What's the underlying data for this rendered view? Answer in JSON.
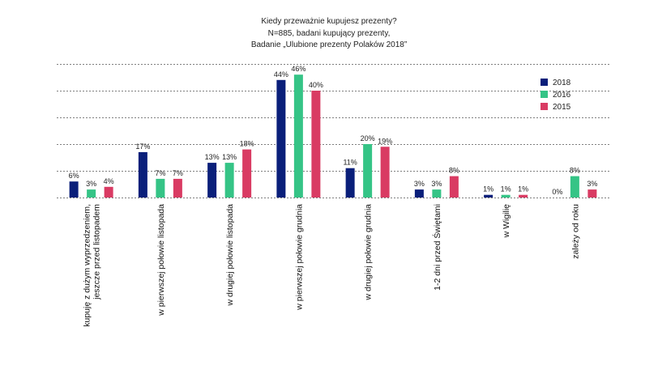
{
  "chart_data": {
    "type": "bar",
    "title_lines": [
      "Kiedy przeważnie kupujesz prezenty?",
      "N=885, badani kupujący prezenty,",
      "Badanie „Ulubione prezenty Polaków 2018”"
    ],
    "categories": [
      [
        "kupuję z dużym wyprzedzeniem,",
        "jeszcze przed listopadem"
      ],
      [
        "w pierwszej połowie listopada"
      ],
      [
        "w drugiej połowie listopada"
      ],
      [
        "w pierwszej połowie grudnia"
      ],
      [
        "w drugiej połowie grudnia"
      ],
      [
        "1-2 dni przed Świętami"
      ],
      [
        "w Wigilię"
      ],
      [
        "zależy od roku"
      ]
    ],
    "series": [
      {
        "name": "2018",
        "color": "#0a1f7a",
        "values": [
          6,
          17,
          13,
          44,
          11,
          3,
          1,
          0
        ]
      },
      {
        "name": "2016",
        "color": "#35c486",
        "values": [
          3,
          7,
          13,
          46,
          20,
          3,
          1,
          8
        ]
      },
      {
        "name": "2015",
        "color": "#d93b63",
        "values": [
          4,
          7,
          18,
          40,
          19,
          8,
          1,
          3
        ]
      }
    ],
    "value_suffix": "%",
    "ylim": [
      0,
      50
    ],
    "grid": "dotted horizontal",
    "legend_position": "top-right"
  }
}
